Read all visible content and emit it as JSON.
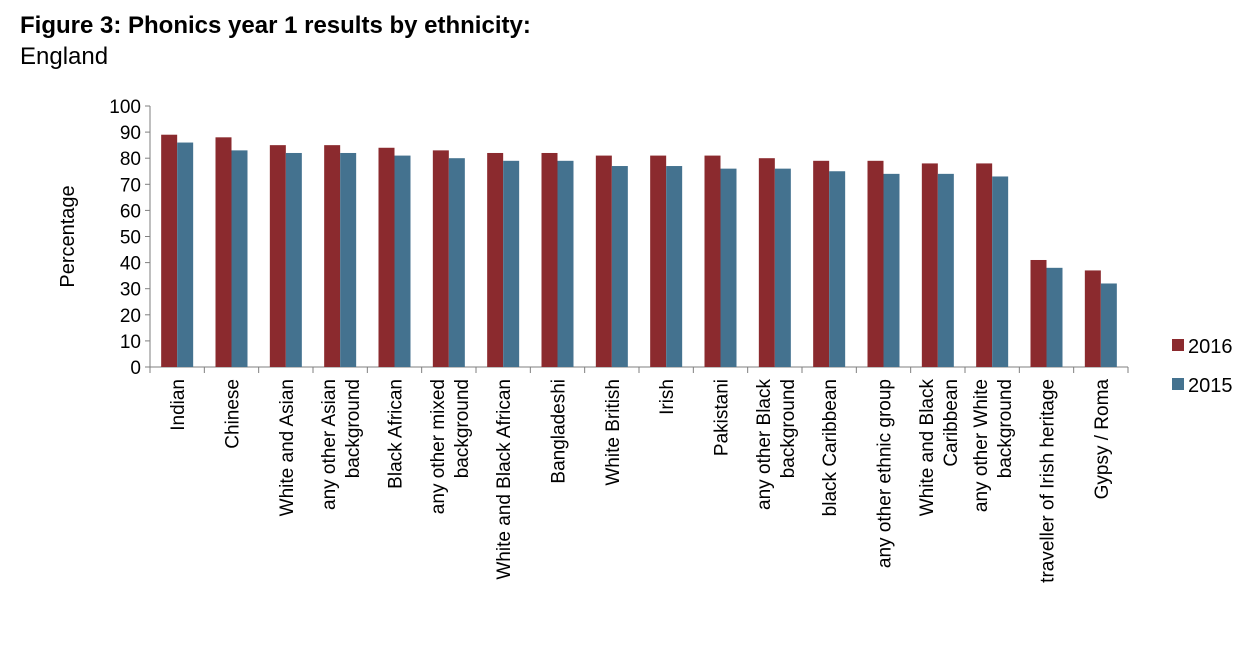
{
  "header": {
    "title": "Figure 3: Phonics year 1 results by ethnicity:",
    "subtitle": "England"
  },
  "chart_data": {
    "type": "bar",
    "ylabel": "Percentage",
    "ylim": [
      0,
      100
    ],
    "yticks": [
      0,
      10,
      20,
      30,
      40,
      50,
      60,
      70,
      80,
      90,
      100
    ],
    "grid": false,
    "legend_position": "right",
    "categories": [
      [
        "Indian"
      ],
      [
        "Chinese"
      ],
      [
        "White and Asian"
      ],
      [
        "any other Asian",
        "background"
      ],
      [
        "Black African"
      ],
      [
        "any other mixed",
        "background"
      ],
      [
        "White and Black African"
      ],
      [
        "Bangladeshi"
      ],
      [
        "White British"
      ],
      [
        "Irish"
      ],
      [
        "Pakistani"
      ],
      [
        "any other Black",
        "background"
      ],
      [
        "black Caribbean"
      ],
      [
        "any other ethnic group"
      ],
      [
        "White and Black",
        "Caribbean"
      ],
      [
        "any other White",
        "background"
      ],
      [
        "traveller of Irish heritage"
      ],
      [
        "Gypsy / Roma"
      ]
    ],
    "series": [
      {
        "name": "2016",
        "color": "#8b2a2e",
        "values": [
          89,
          88,
          85,
          85,
          84,
          83,
          82,
          82,
          81,
          81,
          81,
          80,
          79,
          79,
          78,
          78,
          41,
          37
        ]
      },
      {
        "name": "2015",
        "color": "#44728f",
        "values": [
          86,
          83,
          82,
          82,
          81,
          80,
          79,
          79,
          77,
          77,
          76,
          76,
          75,
          74,
          74,
          73,
          38,
          32
        ]
      }
    ]
  }
}
